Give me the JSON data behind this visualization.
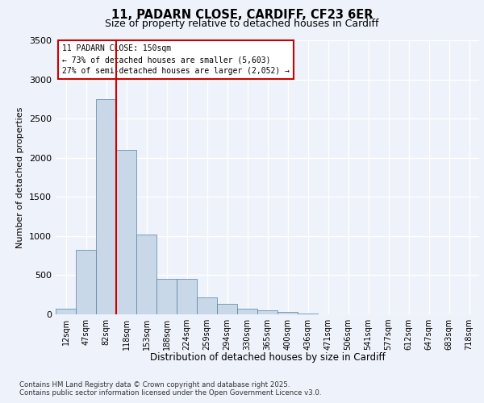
{
  "title_line1": "11, PADARN CLOSE, CARDIFF, CF23 6ER",
  "title_line2": "Size of property relative to detached houses in Cardiff",
  "xlabel": "Distribution of detached houses by size in Cardiff",
  "ylabel": "Number of detached properties",
  "categories": [
    "12sqm",
    "47sqm",
    "82sqm",
    "118sqm",
    "153sqm",
    "188sqm",
    "224sqm",
    "259sqm",
    "294sqm",
    "330sqm",
    "365sqm",
    "400sqm",
    "436sqm",
    "471sqm",
    "506sqm",
    "541sqm",
    "577sqm",
    "612sqm",
    "647sqm",
    "683sqm",
    "718sqm"
  ],
  "values": [
    70,
    820,
    2750,
    2100,
    1020,
    450,
    450,
    220,
    130,
    70,
    50,
    30,
    10,
    5,
    3,
    2,
    1,
    1,
    0,
    0,
    0
  ],
  "bar_color": "#c8d8e8",
  "bar_edge_color": "#5580a0",
  "vline_index": 3,
  "vline_color": "#cc0000",
  "annotation_title": "11 PADARN CLOSE: 150sqm",
  "annotation_line1": "← 73% of detached houses are smaller (5,603)",
  "annotation_line2": "27% of semi-detached houses are larger (2,052) →",
  "annotation_box_color": "#cc0000",
  "ylim": [
    0,
    3500
  ],
  "yticks": [
    0,
    500,
    1000,
    1500,
    2000,
    2500,
    3000,
    3500
  ],
  "footer_line1": "Contains HM Land Registry data © Crown copyright and database right 2025.",
  "footer_line2": "Contains public sector information licensed under the Open Government Licence v3.0.",
  "background_color": "#eef2fa",
  "grid_color": "#ffffff"
}
